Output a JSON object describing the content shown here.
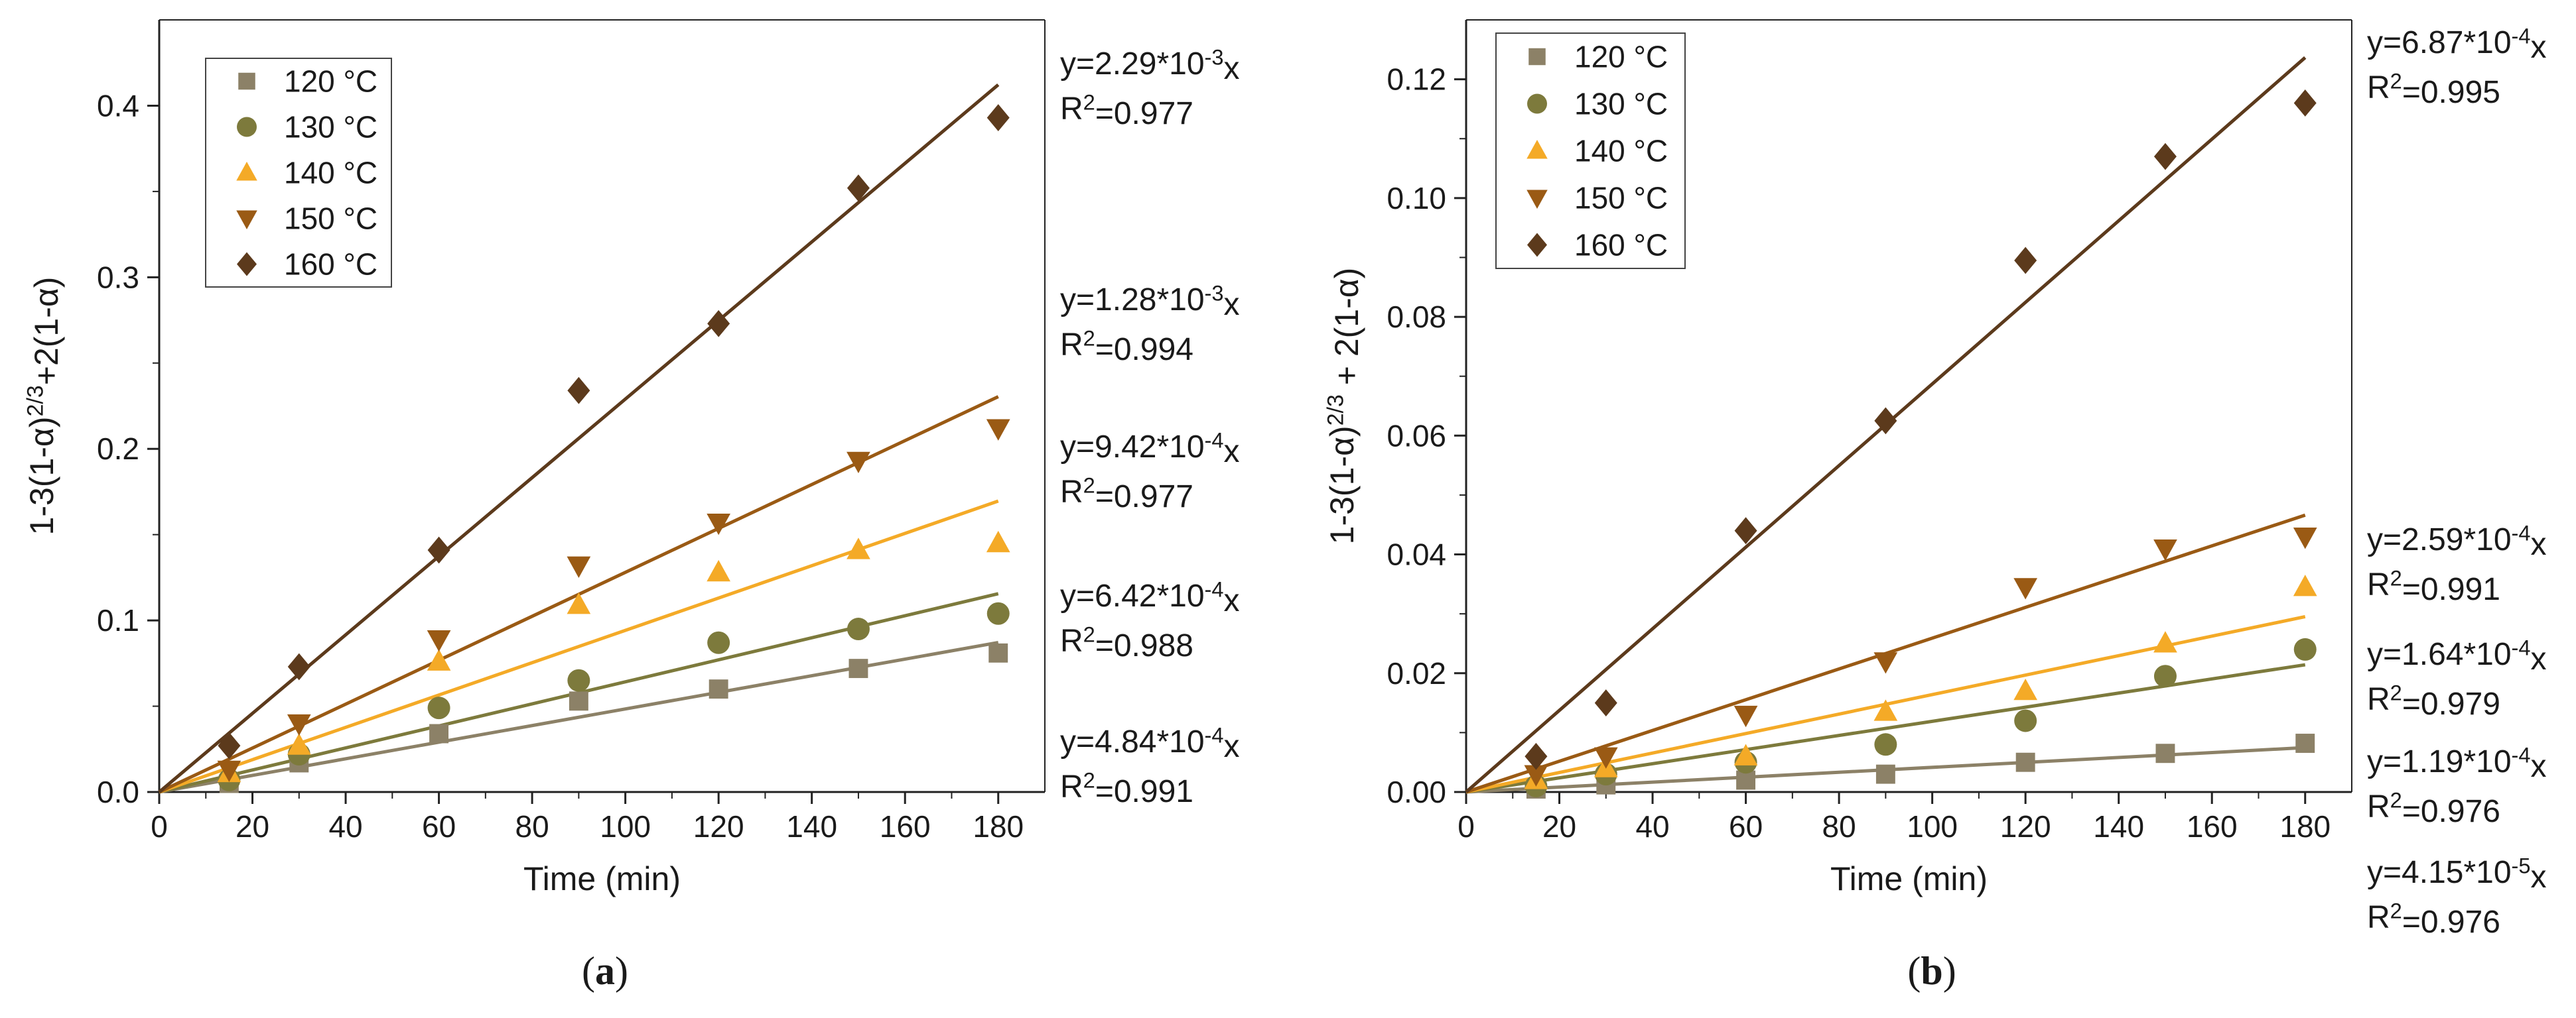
{
  "colors": {
    "120": "#8c8167",
    "130": "#7d7a3c",
    "140": "#f4aa27",
    "150": "#9a5a14",
    "160": "#5c3a1c",
    "axis": "#222222"
  },
  "chart_data": [
    {
      "type": "scatter",
      "panel_label": "a",
      "xlabel": "Time (min)",
      "ylabel": "1-3(1-α)^{2/3}+2(1-α)",
      "xlim": [
        0,
        190
      ],
      "ylim": [
        0,
        0.45
      ],
      "xticks": [
        0,
        20,
        40,
        60,
        80,
        100,
        120,
        140,
        160,
        180
      ],
      "xtick_labels": [
        "0",
        "20",
        "40",
        "60",
        "80",
        "100",
        "120",
        "140",
        "160",
        "180"
      ],
      "yticks": [
        0.0,
        0.1,
        0.2,
        0.3,
        0.4
      ],
      "ytick_labels": [
        "0.0",
        "0.1",
        "0.2",
        "0.3",
        "0.4"
      ],
      "grid": false,
      "legend_position": "top-left",
      "x": [
        15,
        30,
        60,
        90,
        120,
        150,
        180
      ],
      "series": [
        {
          "name": "120 °C",
          "key": "120",
          "marker": "square",
          "values": [
            0.005,
            0.017,
            0.034,
            0.053,
            0.06,
            0.072,
            0.081
          ],
          "slope": 0.000484,
          "fit_label": "y=4.84*10^{-4}x",
          "r2_label": "R^{2}=0.991"
        },
        {
          "name": "130 °C",
          "key": "130",
          "marker": "circle",
          "values": [
            0.007,
            0.022,
            0.049,
            0.065,
            0.087,
            0.095,
            0.104
          ],
          "slope": 0.000642,
          "fit_label": "y=6.42*10^{-4}x",
          "r2_label": "R^{2}=0.988"
        },
        {
          "name": "140 °C",
          "key": "140",
          "marker": "triangle-up",
          "values": [
            0.011,
            0.027,
            0.076,
            0.109,
            0.128,
            0.141,
            0.145
          ],
          "slope": 0.000942,
          "fit_label": "y=9.42*10^{-4}x",
          "r2_label": "R^{2}=0.977"
        },
        {
          "name": "150 °C",
          "key": "150",
          "marker": "triangle-down",
          "values": [
            0.013,
            0.04,
            0.089,
            0.132,
            0.157,
            0.193,
            0.212
          ],
          "slope": 0.00128,
          "fit_label": "y=1.28*10^{-3}x",
          "r2_label": "R^{2}=0.994"
        },
        {
          "name": "160 °C",
          "key": "160",
          "marker": "diamond",
          "values": [
            0.027,
            0.073,
            0.141,
            0.234,
            0.273,
            0.352,
            0.393
          ],
          "slope": 0.00229,
          "fit_label": "y=2.29*10^{-3}x",
          "r2_label": "R^{2}=0.977"
        }
      ]
    },
    {
      "type": "scatter",
      "panel_label": "b",
      "xlabel": "Time (min)",
      "ylabel": "1-3(1-α)^{2/3} + 2(1-α)",
      "xlim": [
        0,
        190
      ],
      "ylim": [
        0,
        0.13
      ],
      "xticks": [
        0,
        20,
        40,
        60,
        80,
        100,
        120,
        140,
        160,
        180
      ],
      "xtick_labels": [
        "0",
        "20",
        "40",
        "60",
        "80",
        "100",
        "120",
        "140",
        "160",
        "180"
      ],
      "yticks": [
        0.0,
        0.02,
        0.04,
        0.06,
        0.08,
        0.1,
        0.12
      ],
      "ytick_labels": [
        "0.00",
        "0.02",
        "0.04",
        "0.06",
        "0.08",
        "0.10",
        "0.12"
      ],
      "grid": false,
      "legend_position": "top-left",
      "x": [
        15,
        30,
        60,
        90,
        120,
        150,
        180
      ],
      "series": [
        {
          "name": "120 °C",
          "key": "120",
          "marker": "square",
          "values": [
            0.0005,
            0.0012,
            0.002,
            0.003,
            0.005,
            0.0065,
            0.0082
          ],
          "slope": 4.15e-05,
          "fit_label": "y=4.15*10^{-5}x",
          "r2_label": "R^{2}=0.976"
        },
        {
          "name": "130 °C",
          "key": "130",
          "marker": "circle",
          "values": [
            0.001,
            0.003,
            0.005,
            0.008,
            0.012,
            0.0195,
            0.024
          ],
          "slope": 0.000119,
          "fit_label": "y=1.19*10^{-4}x",
          "r2_label": "R^{2}=0.976"
        },
        {
          "name": "140 °C",
          "key": "140",
          "marker": "triangle-up",
          "values": [
            0.002,
            0.004,
            0.006,
            0.0135,
            0.017,
            0.025,
            0.0345
          ],
          "slope": 0.000164,
          "fit_label": "y=1.64*10^{-4}x",
          "r2_label": "R^{2}=0.979"
        },
        {
          "name": "150 °C",
          "key": "150",
          "marker": "triangle-down",
          "values": [
            0.003,
            0.006,
            0.013,
            0.022,
            0.0345,
            0.041,
            0.043
          ],
          "slope": 0.000259,
          "fit_label": "y=2.59*10^{-4}x",
          "r2_label": "R^{2}=0.991"
        },
        {
          "name": "160 °C",
          "key": "160",
          "marker": "diamond",
          "values": [
            0.006,
            0.015,
            0.044,
            0.0625,
            0.0895,
            0.107,
            0.116
          ],
          "slope": 0.000687,
          "fit_label": "y=6.87*10^{-4}x",
          "r2_label": "R^{2}=0.995"
        }
      ]
    }
  ]
}
